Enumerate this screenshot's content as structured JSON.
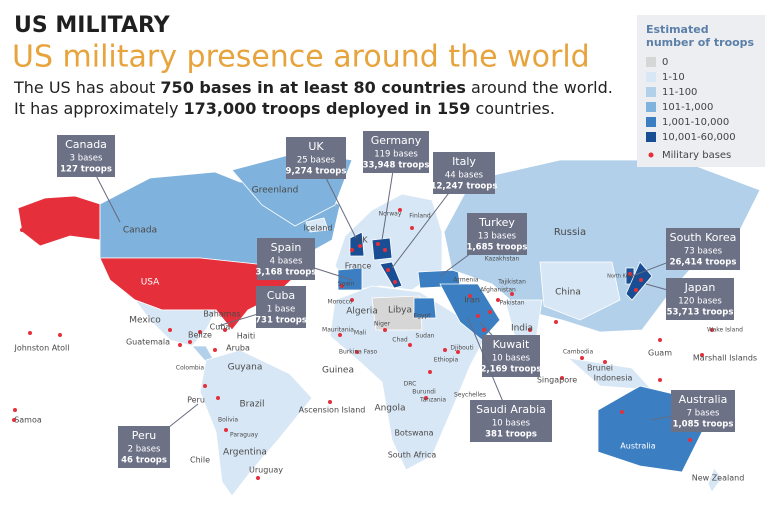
{
  "header": {
    "kicker": "US MILITARY",
    "title": "US military presence around the world",
    "description": [
      [
        {
          "text": "The US has about ",
          "bold": false
        },
        {
          "text": "750 bases in at least 80 countries",
          "bold": true
        },
        {
          "text": " around the world.",
          "bold": false
        }
      ],
      [
        {
          "text": "It has approximately ",
          "bold": false
        },
        {
          "text": "173,000 troops deployed in 159",
          "bold": true
        },
        {
          "text": " countries.",
          "bold": false
        }
      ]
    ]
  },
  "legend": {
    "title_lines": [
      "Estimated",
      "number of troops"
    ],
    "items": [
      {
        "label": "0",
        "color": "#d6d6d6"
      },
      {
        "label": "1-10",
        "color": "#d8e7f5"
      },
      {
        "label": "11-100",
        "color": "#b2d0ea"
      },
      {
        "label": "101-1,000",
        "color": "#7fb2dc"
      },
      {
        "label": "1,001-10,000",
        "color": "#3b7fc2"
      },
      {
        "label": "10,001-60,000",
        "color": "#1a4e94"
      }
    ],
    "bases_label": "Military bases",
    "bases_color": "#e5303c"
  },
  "callouts": [
    {
      "name": "Canada",
      "bases": "3 bases",
      "troops": "127 troops"
    },
    {
      "name": "UK",
      "bases": "25 bases",
      "troops": "9,274 troops"
    },
    {
      "name": "Germany",
      "bases": "119 bases",
      "troops": "33,948 troops"
    },
    {
      "name": "Italy",
      "bases": "44 bases",
      "troops": "12,247 troops"
    },
    {
      "name": "Turkey",
      "bases": "13 bases",
      "troops": "1,685 troops"
    },
    {
      "name": "Spain",
      "bases": "4 bases",
      "troops": "3,168 troops"
    },
    {
      "name": "Cuba",
      "bases": "1 base",
      "troops": "731 troops"
    },
    {
      "name": "South Korea",
      "bases": "73 bases",
      "troops": "26,414 troops"
    },
    {
      "name": "Japan",
      "bases": "120 bases",
      "troops": "53,713 troops"
    },
    {
      "name": "Kuwait",
      "bases": "10 bases",
      "troops": "2,169 troops"
    },
    {
      "name": "Saudi Arabia",
      "bases": "10 bases",
      "troops": "381 troops"
    },
    {
      "name": "Peru",
      "bases": "2 bases",
      "troops": "46 troops"
    },
    {
      "name": "Australia",
      "bases": "7 bases",
      "troops": "1,085 troops"
    }
  ],
  "map_labels": [
    "Greenland",
    "Canada",
    "USA",
    "Mexico",
    "Bahamas",
    "Cuba",
    "Haiti",
    "Belize",
    "Guatemala",
    "Aruba",
    "Colombia",
    "Guyana",
    "Peru",
    "Brazil",
    "Bolivia",
    "Paraguay",
    "Chile",
    "Argentina",
    "Uruguay",
    "Johnston Atoll",
    "Samoa",
    "Iceland",
    "Norway",
    "Finland",
    "UK",
    "France",
    "Spain",
    "Morocco",
    "Algeria",
    "Libya",
    "Egypt",
    "Mauritania",
    "Mali",
    "Niger",
    "Chad",
    "Burkina Faso",
    "Guinea",
    "Sudan",
    "Ethiopia",
    "Djibouti",
    "DRC",
    "Burundi",
    "Tanzania",
    "Seychelles",
    "Angola",
    "Ascension Island",
    "Botswana",
    "South Africa",
    "Russia",
    "Kazakhstan",
    "Armenia",
    "Iran",
    "Afghanistan",
    "Pakistan",
    "Tajikistan",
    "India",
    "China",
    "North Korea",
    "Cambodia",
    "Singapore",
    "Brunei",
    "Indonesia",
    "Guam",
    "Wake Island",
    "Marshall Islands",
    "Australia",
    "New Zealand"
  ]
}
